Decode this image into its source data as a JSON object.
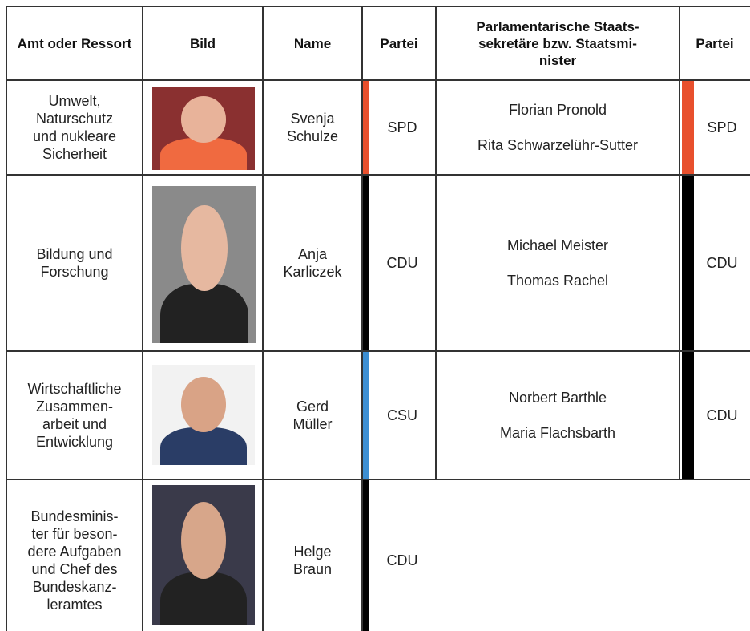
{
  "table": {
    "headers": [
      "Amt oder Ressort",
      "Bild",
      "Name",
      "Partei",
      "Parlamentarische Staats-\nsekretäre bzw. Staatsmi-\nnister",
      "Partei"
    ],
    "rows": [
      {
        "ressort": "Umwelt,\nNaturschutz\nund nukleare\nSicherheit",
        "name": "Svenja\nSchulze",
        "partei": "SPD",
        "staatssekretaere": [
          "Florian Pronold",
          "Rita Schwarzelühr-Sutter"
        ],
        "partei2": "SPD"
      },
      {
        "ressort": "Bildung und\nForschung",
        "name": "Anja\nKarliczek",
        "partei": "CDU",
        "staatssekretaere": [
          "Michael Meister",
          "Thomas Rachel"
        ],
        "partei2": "CDU"
      },
      {
        "ressort": "Wirtschaftliche\nZusammen-\narbeit und\nEntwicklung",
        "name": "Gerd\nMüller",
        "partei": "CSU",
        "staatssekretaere": [
          "Norbert Barthle",
          "Maria Flachsbarth"
        ],
        "partei2": "CDU"
      },
      {
        "ressort": "Bundesminis-\nter für beson-\ndere Aufgaben\nund Chef des\nBundeskanz-\nleramtes",
        "name": "Helge\nBraun",
        "partei": "CDU"
      }
    ]
  }
}
